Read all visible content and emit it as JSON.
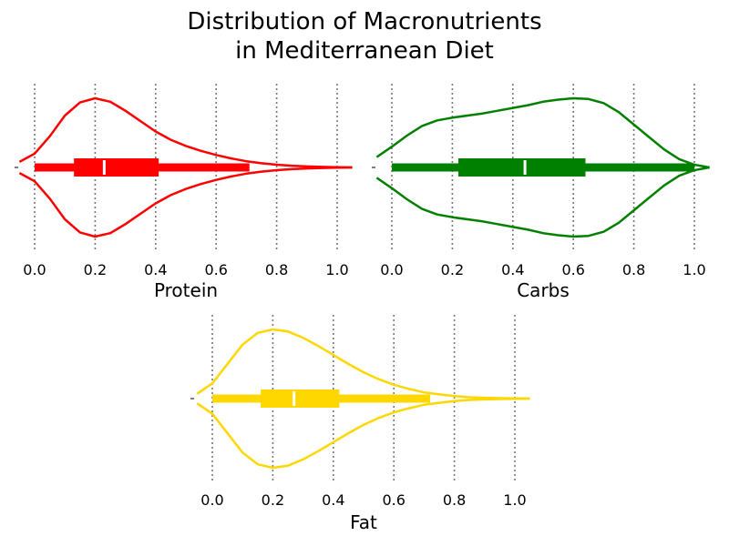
{
  "chart_data": {
    "type": "violin",
    "title_lines": [
      "Distribution of Macronutrients",
      "in Mediterranean Diet"
    ],
    "xlim": [
      -0.05,
      1.05
    ],
    "xticks": [
      0.0,
      0.2,
      0.4,
      0.6,
      0.8,
      1.0
    ],
    "xtick_labels": [
      "0.0",
      "0.2",
      "0.4",
      "0.6",
      "0.8",
      "1.0"
    ],
    "grid": "vertical dotted",
    "panels": [
      {
        "name": "Protein",
        "xlabel": "Protein",
        "color": "#ff0000",
        "whisker": [
          0.0,
          0.71
        ],
        "quartiles": [
          0.13,
          0.41
        ],
        "median": 0.23,
        "density": {
          "x": [
            -0.05,
            0.0,
            0.05,
            0.1,
            0.15,
            0.2,
            0.25,
            0.3,
            0.35,
            0.4,
            0.45,
            0.5,
            0.55,
            0.6,
            0.65,
            0.7,
            0.75,
            0.8,
            0.85,
            0.9,
            0.95,
            1.0,
            1.05
          ],
          "y": [
            0.08,
            0.2,
            0.45,
            0.75,
            0.94,
            1.0,
            0.95,
            0.82,
            0.67,
            0.52,
            0.4,
            0.31,
            0.24,
            0.18,
            0.13,
            0.09,
            0.06,
            0.04,
            0.025,
            0.015,
            0.008,
            0.004,
            0.0
          ]
        }
      },
      {
        "name": "Carbs",
        "xlabel": "Carbs",
        "color": "#008000",
        "whisker": [
          0.0,
          1.0
        ],
        "quartiles": [
          0.22,
          0.64
        ],
        "median": 0.44,
        "density": {
          "x": [
            -0.05,
            0.0,
            0.05,
            0.1,
            0.15,
            0.2,
            0.25,
            0.3,
            0.35,
            0.4,
            0.45,
            0.5,
            0.55,
            0.6,
            0.65,
            0.7,
            0.75,
            0.8,
            0.85,
            0.9,
            0.95,
            1.0,
            1.05
          ],
          "y": [
            0.15,
            0.3,
            0.46,
            0.6,
            0.68,
            0.72,
            0.75,
            0.78,
            0.82,
            0.86,
            0.9,
            0.95,
            0.98,
            1.0,
            0.99,
            0.93,
            0.8,
            0.62,
            0.44,
            0.26,
            0.12,
            0.04,
            0.0
          ]
        }
      },
      {
        "name": "Fat",
        "xlabel": "Fat",
        "color": "#ffd700",
        "whisker": [
          0.0,
          0.72
        ],
        "quartiles": [
          0.16,
          0.42
        ],
        "median": 0.27,
        "density": {
          "x": [
            -0.05,
            0.0,
            0.05,
            0.1,
            0.15,
            0.2,
            0.25,
            0.3,
            0.35,
            0.4,
            0.45,
            0.5,
            0.55,
            0.6,
            0.65,
            0.7,
            0.75,
            0.8,
            0.85,
            0.9,
            0.95,
            1.0,
            1.05
          ],
          "y": [
            0.07,
            0.22,
            0.5,
            0.78,
            0.95,
            1.0,
            0.97,
            0.88,
            0.76,
            0.63,
            0.5,
            0.38,
            0.28,
            0.2,
            0.14,
            0.09,
            0.06,
            0.035,
            0.02,
            0.012,
            0.006,
            0.002,
            0.0
          ]
        }
      }
    ]
  }
}
